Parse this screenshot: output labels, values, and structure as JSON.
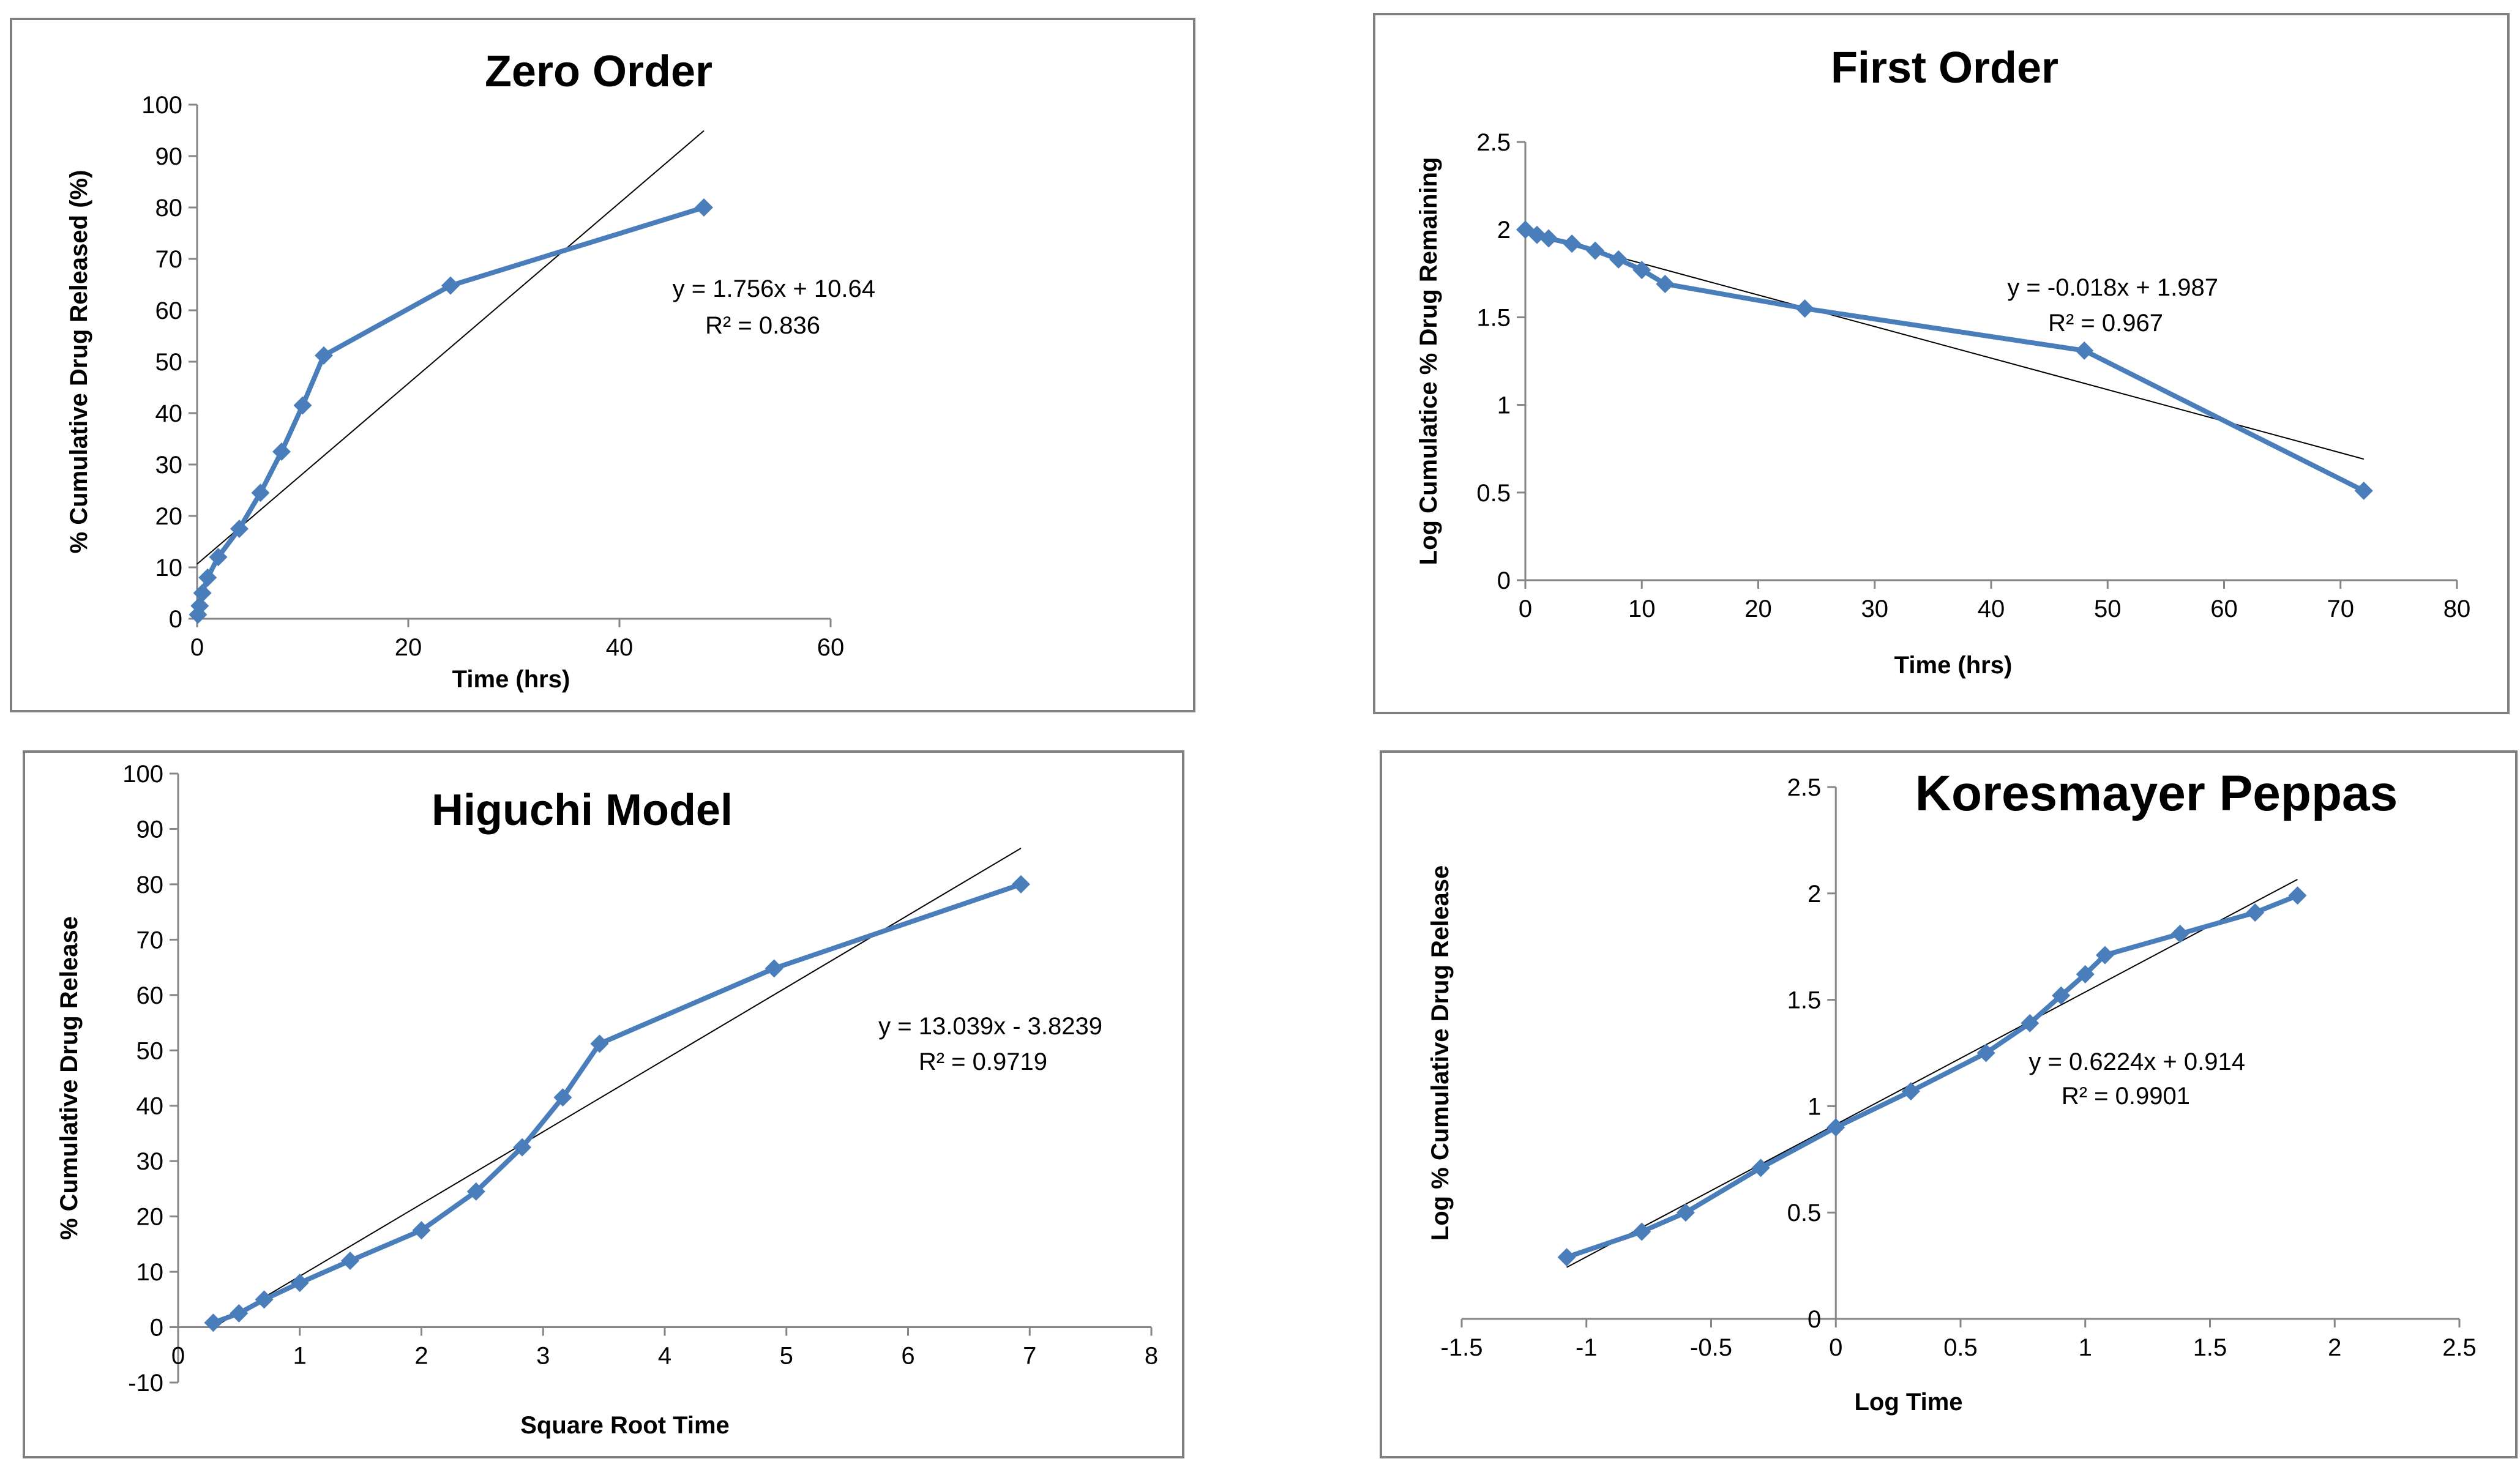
{
  "chart_data": [
    {
      "type": "line",
      "title": "Zero Order",
      "xlabel": "Time (hrs)",
      "ylabel": "% Cumulative Drug Released (%)",
      "xlim": [
        0,
        60
      ],
      "ylim": [
        0,
        100
      ],
      "xticks": [
        0,
        20,
        40,
        60
      ],
      "yticks": [
        0,
        10,
        20,
        30,
        40,
        50,
        60,
        70,
        80,
        90,
        100
      ],
      "x": [
        0.083,
        0.25,
        0.5,
        1,
        2,
        4,
        6,
        8,
        10,
        12,
        24,
        48
      ],
      "y": [
        0.8,
        2.5,
        5,
        8,
        12,
        17.5,
        24.5,
        32.5,
        41.5,
        51.2,
        64.8,
        80
      ],
      "grid": false,
      "trendline": {
        "slope": 1.756,
        "intercept": 10.64,
        "x_range": [
          0,
          48
        ]
      },
      "equation": "y = 1.756x + 10.64",
      "r2": "R² = 0.836",
      "colors": {
        "series": "#4a7ebb",
        "trend": "#000000"
      }
    },
    {
      "type": "line",
      "title": "First Order",
      "xlabel": "Time (hrs)",
      "ylabel": "Log Cumulatice % Drug Remaining",
      "xlim": [
        0,
        80
      ],
      "ylim": [
        0,
        2.5
      ],
      "xticks": [
        0,
        10,
        20,
        30,
        40,
        50,
        60,
        70,
        80
      ],
      "yticks": [
        0,
        0.5,
        1,
        1.5,
        2,
        2.5
      ],
      "x": [
        0,
        1,
        2,
        4,
        6,
        8,
        10,
        12,
        24,
        48,
        72
      ],
      "y": [
        2.0,
        1.97,
        1.95,
        1.92,
        1.88,
        1.83,
        1.77,
        1.69,
        1.55,
        1.31,
        0.51
      ],
      "grid": false,
      "trendline": {
        "slope": -0.018,
        "intercept": 1.987,
        "x_range": [
          0,
          72
        ]
      },
      "equation": "y = -0.018x + 1.987",
      "r2": "R² = 0.967",
      "colors": {
        "series": "#4a7ebb",
        "trend": "#000000"
      }
    },
    {
      "type": "line",
      "title": "Higuchi Model",
      "xlabel": "Square Root Time",
      "ylabel": "% Cumulative Drug Release",
      "xlim": [
        0,
        8
      ],
      "ylim": [
        -10,
        100
      ],
      "xticks": [
        0,
        1,
        2,
        3,
        4,
        5,
        6,
        7,
        8
      ],
      "yticks": [
        -10,
        0,
        10,
        20,
        30,
        40,
        50,
        60,
        70,
        80,
        90,
        100
      ],
      "x": [
        0.289,
        0.5,
        0.707,
        1,
        1.414,
        2,
        2.449,
        2.828,
        3.162,
        3.464,
        4.899,
        6.928
      ],
      "y": [
        0.8,
        2.5,
        5,
        8,
        12,
        17.5,
        24.5,
        32.5,
        41.5,
        51.2,
        64.8,
        80
      ],
      "grid": false,
      "trendline": {
        "slope": 13.039,
        "intercept": -3.8239,
        "x_range": [
          0.289,
          6.928
        ]
      },
      "equation": "y = 13.039x - 3.8239",
      "r2": "R² = 0.9719",
      "colors": {
        "series": "#4a7ebb",
        "trend": "#000000"
      }
    },
    {
      "type": "line",
      "title": "Koresmayer Peppas",
      "xlabel": "Log Time",
      "ylabel": "Log % Cumulative Drug Release",
      "xlim": [
        -1.5,
        2.5
      ],
      "ylim": [
        0,
        2.5
      ],
      "xticks": [
        -1.5,
        -1,
        -0.5,
        0,
        0.5,
        1,
        1.5,
        2,
        2.5
      ],
      "yticks": [
        0,
        0.5,
        1,
        1.5,
        2,
        2.5
      ],
      "x": [
        -1.079,
        -0.778,
        -0.602,
        -0.301,
        0,
        0.301,
        0.602,
        0.778,
        0.903,
        1,
        1.079,
        1.38,
        1.681
      ],
      "y": [
        0.29,
        0.41,
        0.5,
        0.71,
        0.9,
        1.07,
        1.25,
        1.39,
        1.52,
        1.62,
        1.71,
        1.81,
        1.91
      ],
      "x_last": 1.851,
      "y_last": 1.99,
      "grid": false,
      "trendline": {
        "slope": 0.6224,
        "intercept": 0.914,
        "x_range": [
          -1.079,
          1.851
        ]
      },
      "equation": "y = 0.6224x + 0.914",
      "r2": "R² = 0.9901",
      "colors": {
        "series": "#4a7ebb",
        "trend": "#000000"
      }
    }
  ]
}
